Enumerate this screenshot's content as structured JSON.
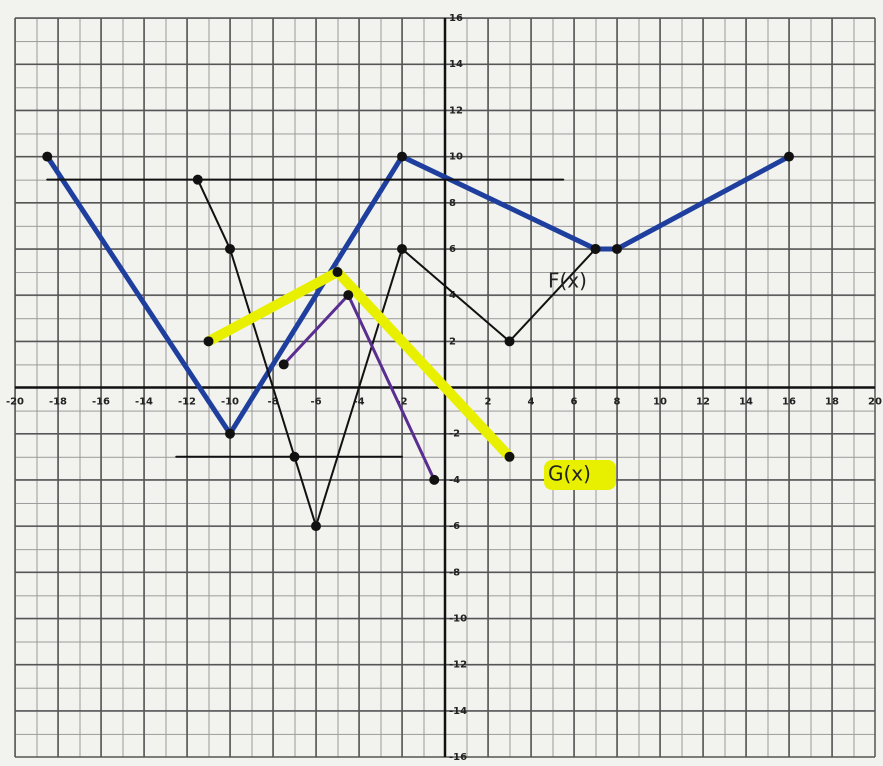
{
  "chart_data": {
    "type": "line",
    "title": null,
    "xlim": [
      -20,
      20
    ],
    "ylim": [
      -16,
      16
    ],
    "xticks": [
      -20,
      -18,
      -16,
      -14,
      -12,
      -10,
      -8,
      -6,
      -4,
      -2,
      2,
      4,
      6,
      8,
      10,
      12,
      14,
      16,
      18,
      20
    ],
    "yticks": [
      -16,
      -14,
      -12,
      -10,
      -8,
      -6,
      -4,
      -2,
      2,
      4,
      6,
      8,
      10,
      12,
      14,
      16
    ],
    "grid": true,
    "series": [
      {
        "name": "F(x)",
        "color": "#1f3f9e",
        "width": 5,
        "markers": true,
        "x": [
          -18.5,
          -10,
          -2,
          7,
          8,
          16
        ],
        "values": [
          10,
          -2,
          10,
          6,
          6,
          10
        ]
      },
      {
        "color": "#111111",
        "width": 2,
        "markers": true,
        "x": [
          -11.5,
          -10,
          -7,
          -6,
          -2,
          3,
          7
        ],
        "values": [
          9,
          6,
          -3,
          -6,
          6,
          2,
          6
        ]
      },
      {
        "name": "G(x)",
        "color": "#e8f000",
        "width": 10,
        "markers": true,
        "x": [
          -11,
          -5,
          3
        ],
        "values": [
          2,
          5,
          -3
        ]
      },
      {
        "color": "#5a2d91",
        "width": 3,
        "markers": true,
        "x": [
          -7.5,
          -4.5,
          -0.5
        ],
        "values": [
          1,
          4,
          -4
        ]
      },
      {
        "color": "#111111",
        "width": 2,
        "markers": false,
        "x": [
          -18.5,
          5.5
        ],
        "values": [
          9,
          9
        ]
      },
      {
        "color": "#111111",
        "width": 2,
        "markers": false,
        "x": [
          -12.5,
          -2
        ],
        "values": [
          -3,
          -3
        ]
      }
    ]
  }
}
